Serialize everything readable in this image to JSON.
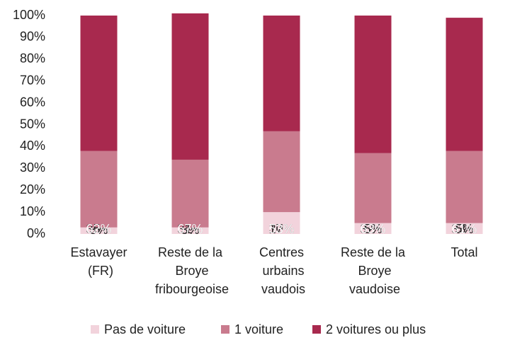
{
  "chart_data": {
    "type": "stacked_bar",
    "categories": [
      "Estavayer (FR)",
      "Reste de la Broye fribourgeoise",
      "Centres urbains vaudois",
      "Reste de la Broye vaudoise",
      "Total"
    ],
    "series": [
      {
        "name": "Pas de voiture",
        "color": "#f2d3dc",
        "label_color": "#222222",
        "values": [
          3,
          3,
          10,
          5,
          5
        ],
        "value_labels": [
          "3%",
          "3%",
          "10%",
          "5%",
          "5%"
        ]
      },
      {
        "name": "1 voiture",
        "color": "#c97b8e",
        "label_color": "#222222",
        "values": [
          35,
          31,
          37,
          32,
          33
        ],
        "value_labels": [
          "35%",
          "31%",
          "37%",
          "32%",
          "33%"
        ]
      },
      {
        "name": "2 voitures ou plus",
        "color": "#a8294e",
        "label_color": "#ffffff",
        "values": [
          62,
          67,
          53,
          63,
          61
        ],
        "value_labels": [
          "62%",
          "67%",
          "53%",
          "63%",
          "61%"
        ]
      }
    ],
    "ylim": [
      0,
      100
    ],
    "yticks": [
      {
        "value": 0,
        "label": "0%"
      },
      {
        "value": 10,
        "label": "10%"
      },
      {
        "value": 20,
        "label": "20%"
      },
      {
        "value": 30,
        "label": "30%"
      },
      {
        "value": 40,
        "label": "40%"
      },
      {
        "value": 50,
        "label": "50%"
      },
      {
        "value": 60,
        "label": "60%"
      },
      {
        "value": 70,
        "label": "70%"
      },
      {
        "value": 80,
        "label": "80%"
      },
      {
        "value": 90,
        "label": "90%"
      },
      {
        "value": 100,
        "label": "100%"
      }
    ],
    "legend": "bottom"
  }
}
